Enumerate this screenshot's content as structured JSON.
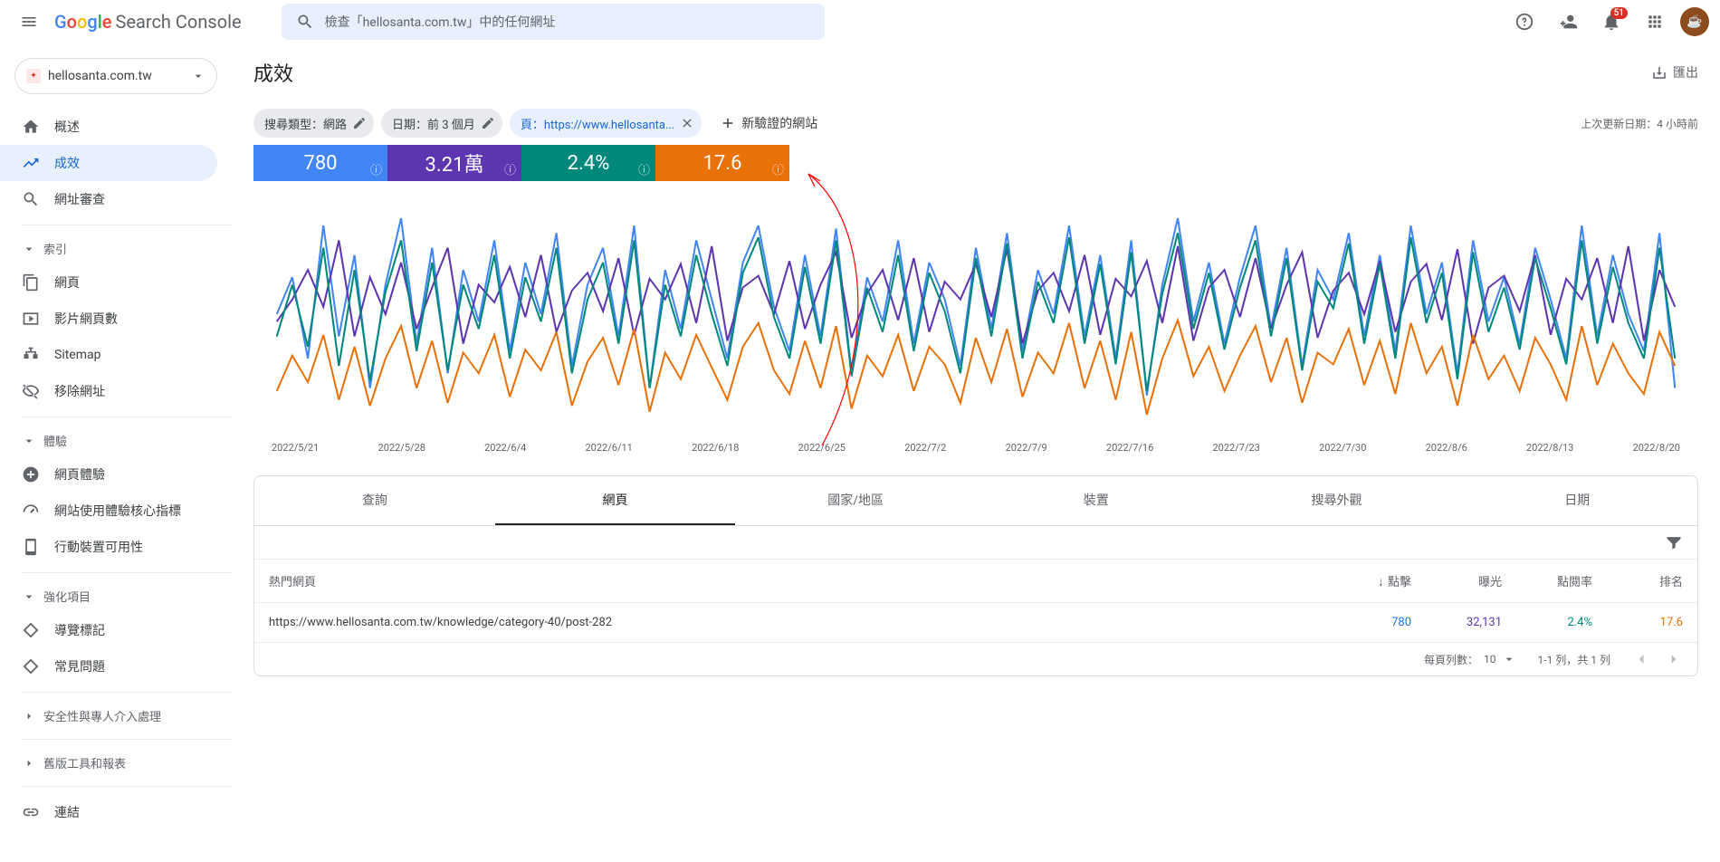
{
  "topbar": {
    "product": "Search Console",
    "search_placeholder": "檢查「hellosanta.com.tw」中的任何網址",
    "notif_count": "51"
  },
  "property": {
    "name": "hellosanta.com.tw"
  },
  "nav": {
    "overview": "概述",
    "performance": "成效",
    "url_inspect": "網址審查",
    "section_index": "索引",
    "pages": "網頁",
    "video": "影片網頁數",
    "sitemap": "Sitemap",
    "removals": "移除網址",
    "section_exp": "體驗",
    "page_exp": "網頁體驗",
    "cwv": "網站使用體驗核心指標",
    "mobile": "行動裝置可用性",
    "section_enh": "強化項目",
    "breadcrumbs": "導覽標記",
    "faq": "常見問題",
    "security": "安全性與專人介入處理",
    "legacy": "舊版工具和報表",
    "links": "連結"
  },
  "page": {
    "title": "成效",
    "export": "匯出",
    "last_update_label": "上次更新日期：",
    "last_update_value": "4 小時前"
  },
  "filters": {
    "type_label": "搜尋類型：",
    "type_value": "網路",
    "date_label": "日期：",
    "date_value": "前 3 個月",
    "page_label": "頁：",
    "page_value": "https://www.hellosanta...",
    "add": "新驗證的網站"
  },
  "metrics": [
    {
      "value": "780",
      "color": "#4285f4"
    },
    {
      "value": "3.21萬",
      "color": "#5e35b1"
    },
    {
      "value": "2.4%",
      "color": "#00897b"
    },
    {
      "value": "17.6",
      "color": "#e8710a"
    }
  ],
  "chart": {
    "x_labels": [
      "2022/5/21",
      "2022/5/28",
      "2022/6/4",
      "2022/6/11",
      "2022/6/18",
      "2022/6/25",
      "2022/7/2",
      "2022/7/9",
      "2022/7/16",
      "2022/7/23",
      "2022/7/30",
      "2022/8/6",
      "2022/8/13",
      "2022/8/20"
    ],
    "series": {
      "clicks": {
        "color": "#4285f4",
        "values": [
          110,
          135,
          80,
          170,
          95,
          150,
          60,
          130,
          175,
          90,
          155,
          70,
          140,
          105,
          160,
          85,
          145,
          110,
          165,
          75,
          130,
          155,
          95,
          170,
          60,
          140,
          100,
          160,
          120,
          80,
          145,
          170,
          115,
          85,
          150,
          95,
          168,
          70,
          135,
          105,
          160,
          90,
          145,
          120,
          75,
          155,
          100,
          165,
          85,
          140,
          110,
          170,
          95,
          150,
          80,
          160,
          55,
          130,
          175,
          105,
          145,
          90,
          135,
          170,
          100,
          155,
          75,
          140,
          120,
          165,
          95,
          150,
          85,
          170,
          110,
          145,
          70,
          160,
          105,
          135,
          90,
          155,
          120,
          80,
          170,
          95,
          150,
          110,
          85,
          165,
          60
        ]
      },
      "impressions": {
        "color": "#5e35b1",
        "values": [
          105,
          120,
          140,
          115,
          160,
          95,
          135,
          110,
          145,
          100,
          128,
          155,
          90,
          130,
          118,
          142,
          108,
          150,
          98,
          126,
          138,
          112,
          148,
          96,
          134,
          120,
          144,
          104,
          156,
          92,
          128,
          136,
          110,
          146,
          100,
          130,
          152,
          94,
          124,
          140,
          106,
          148,
          98,
          132,
          120,
          144,
          108,
          154,
          90,
          126,
          138,
          112,
          150,
          96,
          134,
          122,
          146,
          104,
          156,
          92,
          128,
          140,
          108,
          148,
          100,
          130,
          152,
          94,
          126,
          138,
          110,
          146,
          98,
          132,
          144,
          106,
          154,
          90,
          128,
          136,
          112,
          150,
          96,
          134,
          120,
          148,
          104,
          156,
          92,
          140,
          115
        ]
      },
      "ctr": {
        "color": "#00897b",
        "values": [
          95,
          130,
          88,
          155,
          75,
          140,
          65,
          125,
          160,
          85,
          145,
          72,
          130,
          100,
          150,
          80,
          135,
          105,
          155,
          70,
          120,
          145,
          90,
          160,
          60,
          130,
          95,
          150,
          110,
          75,
          138,
          162,
          108,
          80,
          142,
          90,
          160,
          68,
          128,
          98,
          150,
          85,
          138,
          112,
          70,
          148,
          95,
          158,
          80,
          132,
          104,
          162,
          90,
          144,
          76,
          152,
          58,
          124,
          165,
          100,
          138,
          86,
          128,
          160,
          95,
          148,
          72,
          132,
          114,
          158,
          90,
          144,
          80,
          162,
          104,
          138,
          66,
          152,
          98,
          128,
          86,
          148,
          114,
          76,
          160,
          90,
          142,
          104,
          80,
          155,
          80
        ]
      },
      "position": {
        "color": "#e8710a",
        "values": [
          58,
          82,
          64,
          96,
          52,
          88,
          48,
          80,
          102,
          60,
          92,
          50,
          84,
          70,
          96,
          54,
          86,
          72,
          98,
          48,
          78,
          94,
          62,
          100,
          44,
          84,
          66,
          96,
          74,
          52,
          88,
          104,
          72,
          56,
          92,
          60,
          102,
          46,
          82,
          68,
          96,
          58,
          88,
          76,
          50,
          94,
          64,
          100,
          54,
          84,
          70,
          104,
          60,
          92,
          52,
          98,
          42,
          80,
          106,
          68,
          88,
          58,
          82,
          102,
          64,
          94,
          50,
          84,
          76,
          100,
          62,
          92,
          56,
          104,
          70,
          88,
          48,
          96,
          66,
          82,
          58,
          94,
          76,
          52,
          102,
          62,
          90,
          70,
          56,
          98,
          75
        ]
      }
    },
    "ymin": 40,
    "ymax": 180
  },
  "tabs": [
    "查詢",
    "網頁",
    "國家/地區",
    "裝置",
    "搜尋外觀",
    "日期"
  ],
  "active_tab": 1,
  "table": {
    "header_page": "熱門網頁",
    "header_clicks": "點擊",
    "header_impr": "曝光",
    "header_ctr": "點閱率",
    "header_pos": "排名",
    "rows": [
      {
        "page": "https://www.hellosanta.com.tw/knowledge/category-40/post-282",
        "clicks": "780",
        "impr": "32,131",
        "ctr": "2.4%",
        "pos": "17.6"
      }
    ],
    "colors": {
      "clicks": "#1a73e8",
      "impr": "#5e35b1",
      "ctr": "#00897b",
      "pos": "#e8710a"
    }
  },
  "pager": {
    "rows_label": "每頁列數：",
    "rows_value": "10",
    "range": "1-1 列，共 1 列"
  }
}
